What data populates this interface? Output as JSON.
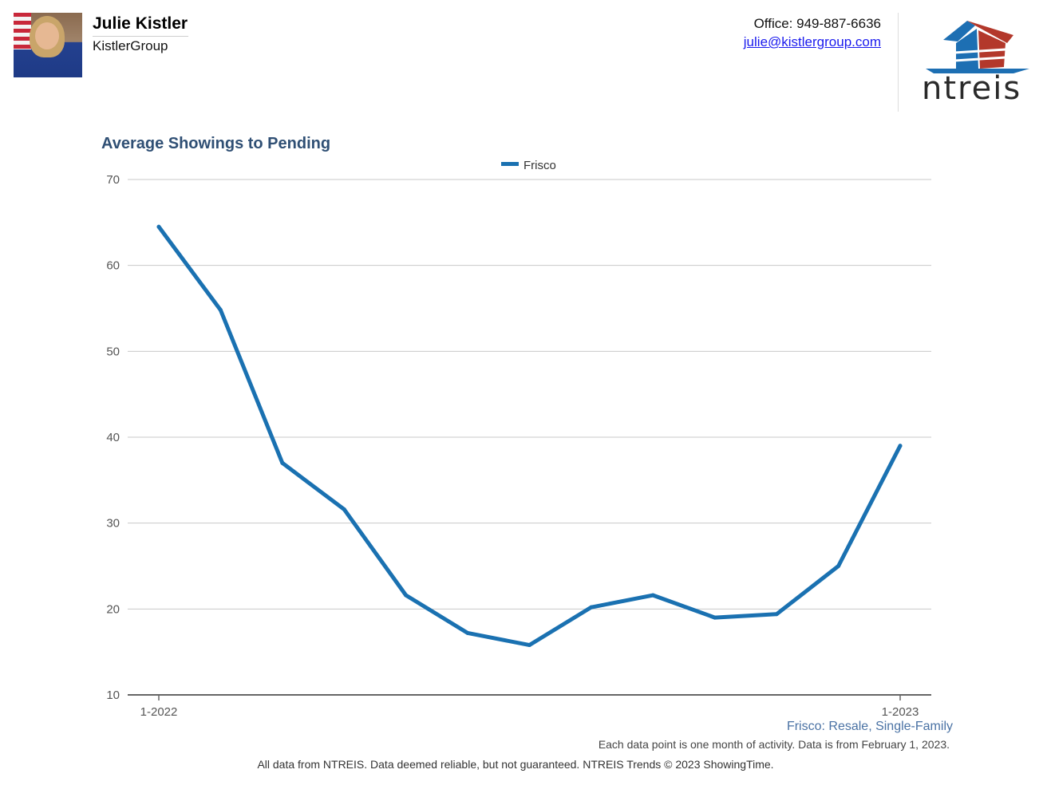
{
  "agent": {
    "name": "Julie Kistler",
    "company": "KistlerGroup",
    "office": "Office: 949-887-6636",
    "email": "julie@kistlergroup.com"
  },
  "logo": {
    "text": "ntreis",
    "colors": {
      "blue": "#1d6fb3",
      "red": "#b3382b"
    }
  },
  "chart_data": {
    "type": "line",
    "title": "Average Showings to Pending",
    "legend_position": "top-center",
    "grid": true,
    "ylim": [
      10,
      70
    ],
    "y_ticks": [
      70,
      60,
      50,
      40,
      30,
      20,
      10
    ],
    "x_tick_labels": [
      "1-2022",
      "1-2023"
    ],
    "x_tick_indices": [
      0,
      12
    ],
    "categories": [
      "2022-01",
      "2022-02",
      "2022-03",
      "2022-04",
      "2022-05",
      "2022-06",
      "2022-07",
      "2022-08",
      "2022-09",
      "2022-10",
      "2022-11",
      "2022-12",
      "2023-01"
    ],
    "series": [
      {
        "name": "Frisco",
        "color": "#1a71b1",
        "values": [
          64.5,
          54.8,
          37.0,
          31.6,
          21.6,
          17.2,
          15.8,
          20.2,
          21.6,
          19.0,
          19.4,
          25.0,
          39.0
        ]
      }
    ],
    "subtitle": "Frisco: Resale, Single-Family",
    "note": "Each data point is one month of activity. Data is from February 1, 2023."
  },
  "footer": "All data from NTREIS. Data deemed reliable, but not guaranteed. NTREIS Trends © 2023 ShowingTime."
}
